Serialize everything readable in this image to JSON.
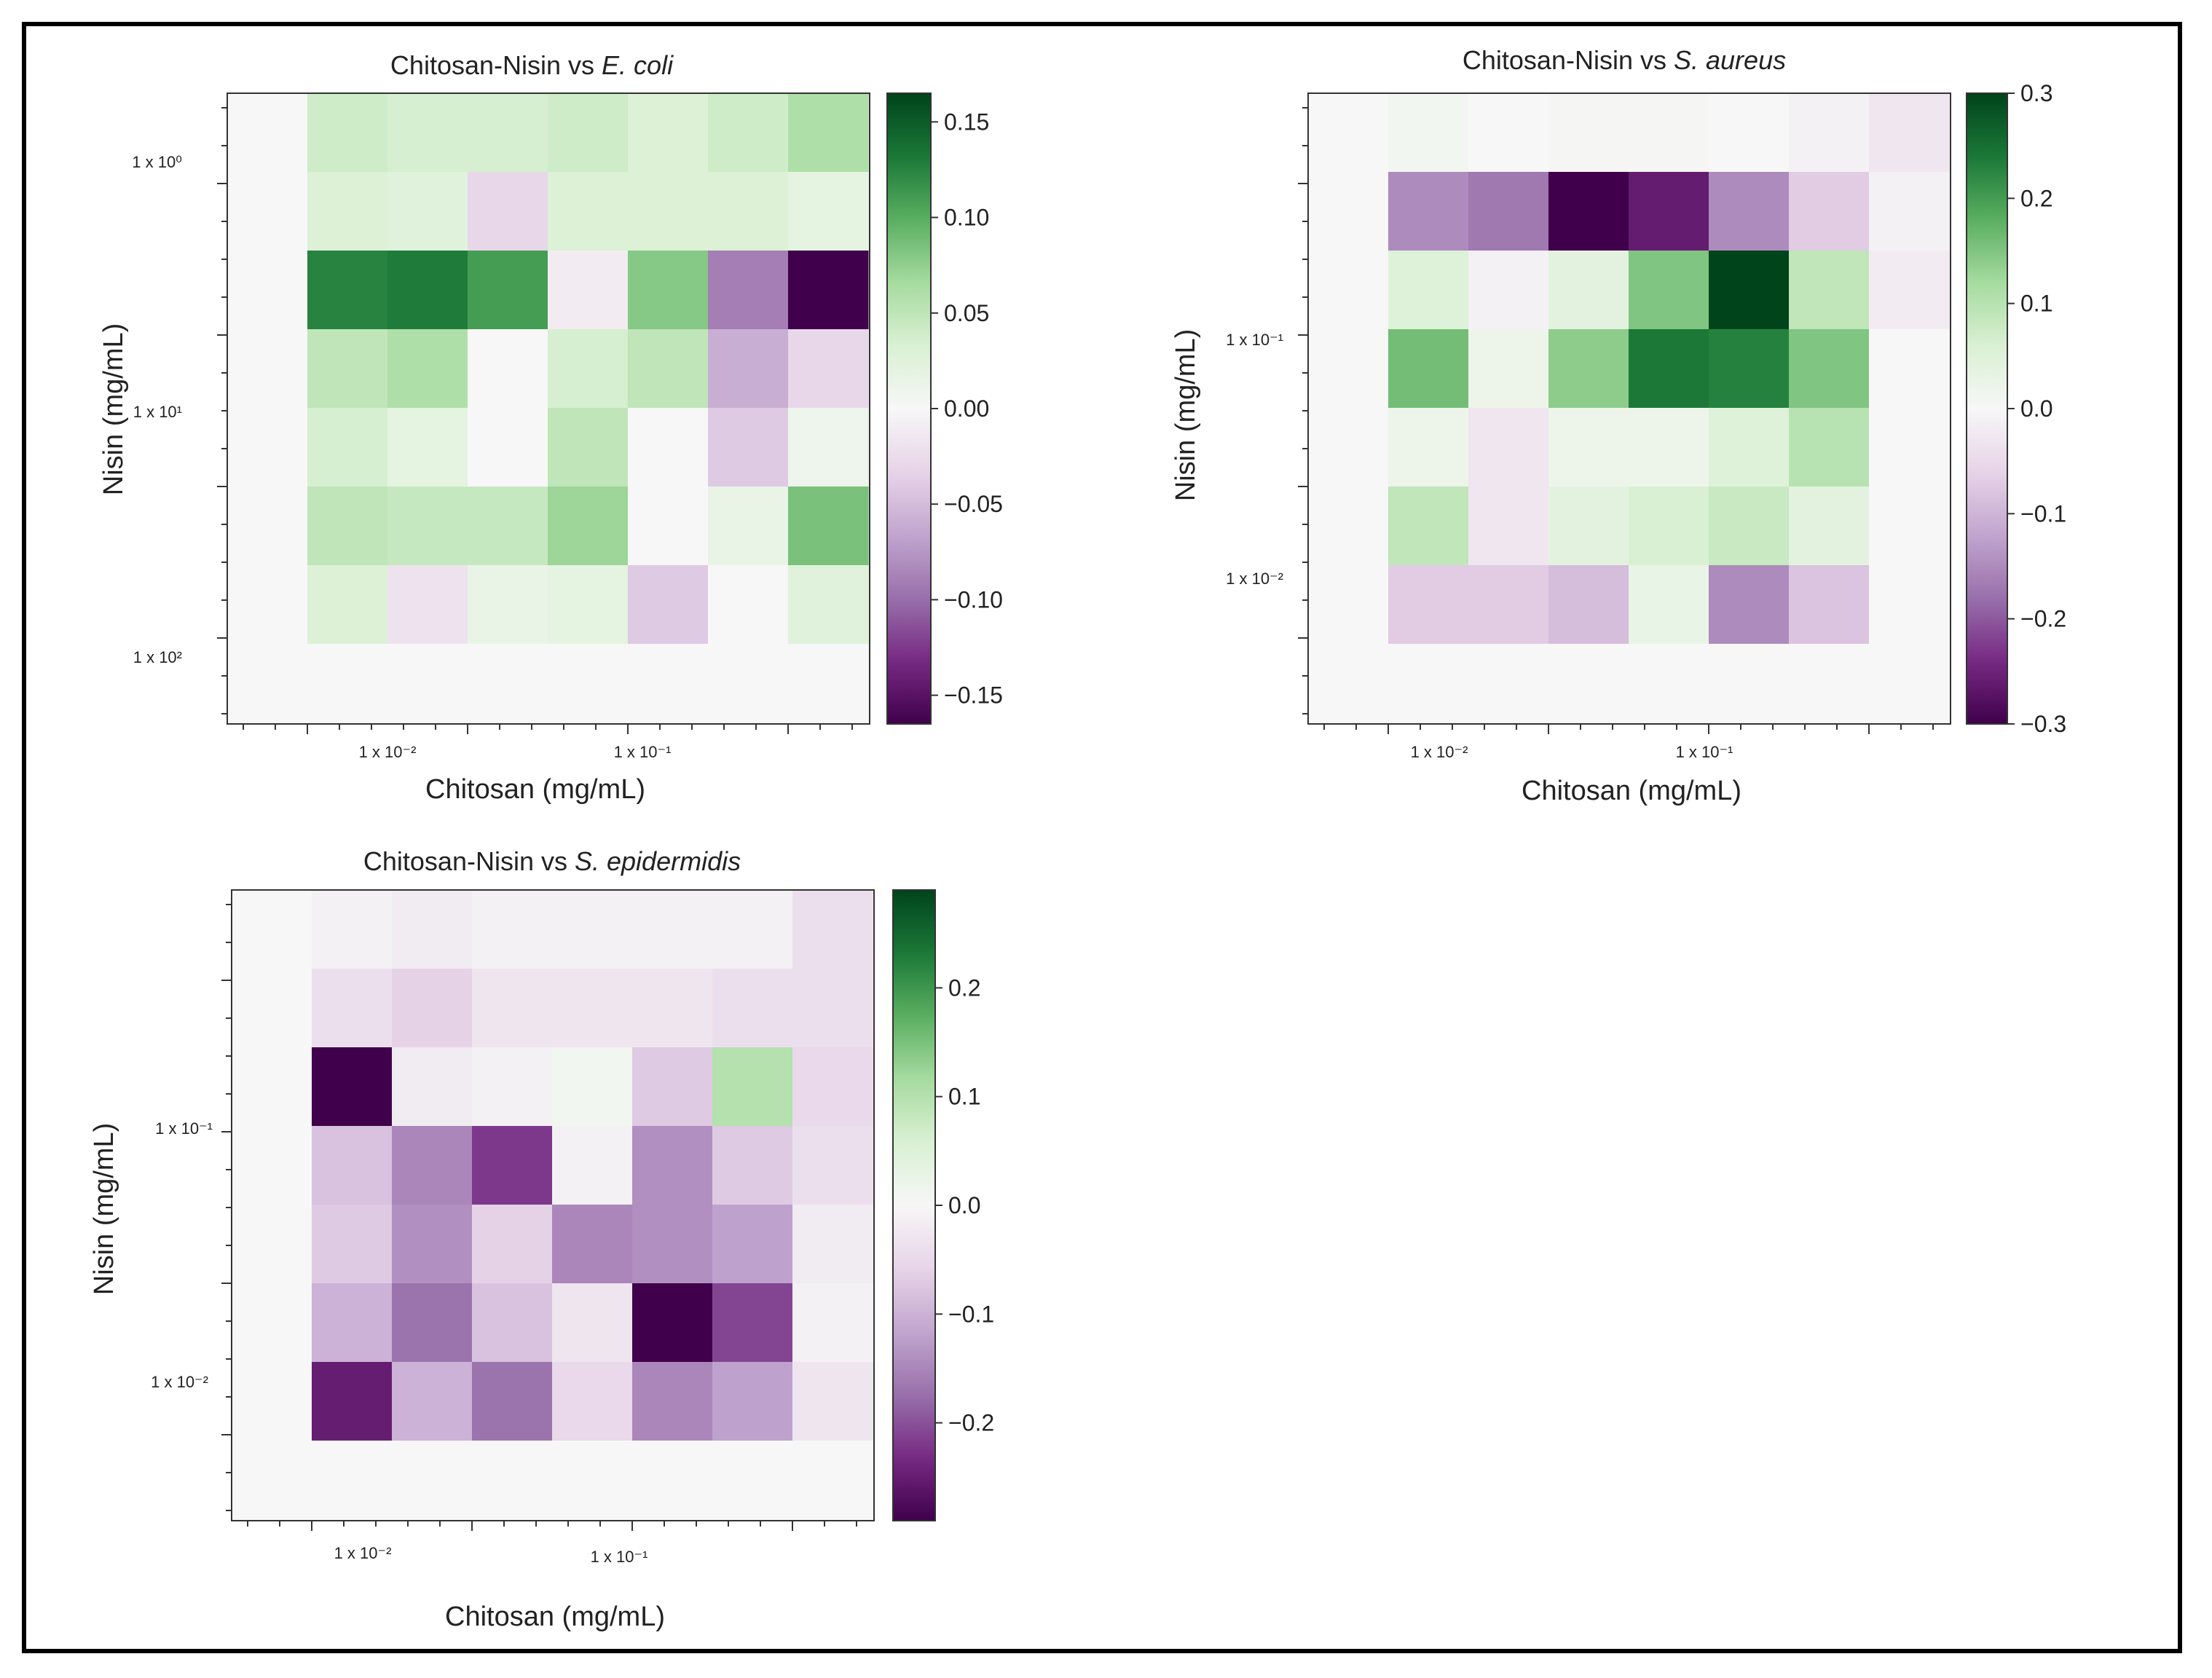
{
  "colormap": {
    "name": "PRGn",
    "stops": [
      "#40004b",
      "#762a83",
      "#9970ab",
      "#c2a5cf",
      "#e7d4e8",
      "#f7f7f7",
      "#d9f0d3",
      "#a6dba0",
      "#5aae61",
      "#1b7837",
      "#00441b"
    ]
  },
  "chart_data": [
    {
      "type": "heatmap",
      "title": "Chitosan-Nisin vs",
      "title_organism": "E. coli",
      "xlabel": "Chitosan (mg/mL)",
      "ylabel": "Nisin (mg/mL)",
      "x_ticks": [
        "1 x 10⁻²",
        "1 x 10⁻¹"
      ],
      "y_ticks": [
        "1 x 10⁰",
        "1 x 10¹",
        "1 x 10²"
      ],
      "vlim": [
        -0.165,
        0.165
      ],
      "colorbar_ticks": [
        0.15,
        0.1,
        0.05,
        0.0,
        -0.05,
        -0.1,
        -0.15
      ],
      "colorbar_labels": [
        "0.15",
        "0.10",
        "0.05",
        "0.00",
        "−0.05",
        "−0.10",
        "−0.15"
      ],
      "values": [
        [
          0,
          0.04,
          0.035,
          0.035,
          0.04,
          0.03,
          0.04,
          0.06
        ],
        [
          0,
          0.03,
          0.025,
          -0.03,
          0.03,
          0.03,
          0.03,
          0.02
        ],
        [
          0,
          0.125,
          0.13,
          0.11,
          -0.01,
          0.08,
          -0.09,
          -0.165
        ],
        [
          0,
          0.05,
          0.06,
          0.0,
          0.035,
          0.05,
          -0.06,
          -0.03
        ],
        [
          0,
          0.035,
          0.02,
          0.0,
          0.05,
          0.0,
          -0.04,
          0.01
        ],
        [
          0,
          0.05,
          0.045,
          0.045,
          0.07,
          0.0,
          0.015,
          0.085
        ],
        [
          0,
          0.03,
          -0.02,
          0.015,
          0.02,
          -0.04,
          0.0,
          0.025
        ],
        [
          0,
          0,
          0,
          0,
          0,
          0,
          0,
          0
        ]
      ]
    },
    {
      "type": "heatmap",
      "title": "Chitosan-Nisin vs",
      "title_organism": "S. aureus",
      "xlabel": "Chitosan (mg/mL)",
      "ylabel": "Nisin (mg/mL)",
      "x_ticks": [
        "1 x 10⁻²",
        "1 x 10⁻¹"
      ],
      "y_ticks": [
        "1 x 10⁻¹",
        "1 x 10⁻²"
      ],
      "vlim": [
        -0.3,
        0.3
      ],
      "colorbar_ticks": [
        0.3,
        0.2,
        0.1,
        0.0,
        -0.1,
        -0.2,
        -0.3
      ],
      "colorbar_labels": [
        "0.3",
        "0.2",
        "0.1",
        "0.0",
        "−0.1",
        "−0.2",
        "−0.3"
      ],
      "values": [
        [
          0,
          0.01,
          0.0,
          0.005,
          0.005,
          0.0,
          -0.01,
          -0.03
        ],
        [
          0,
          -0.15,
          -0.17,
          -0.3,
          -0.26,
          -0.15,
          -0.07,
          -0.01
        ],
        [
          0,
          0.05,
          -0.01,
          0.04,
          0.15,
          0.3,
          0.09,
          -0.02
        ],
        [
          0,
          0.16,
          0.02,
          0.14,
          0.24,
          0.23,
          0.15,
          0.0
        ],
        [
          0,
          0.02,
          -0.03,
          0.02,
          0.02,
          0.05,
          0.1,
          0.0
        ],
        [
          0,
          0.09,
          -0.03,
          0.04,
          0.06,
          0.08,
          0.04,
          0.0
        ],
        [
          0,
          -0.07,
          -0.07,
          -0.09,
          0.03,
          -0.15,
          -0.08,
          0.0
        ],
        [
          0,
          0,
          0,
          0,
          0,
          0,
          0,
          0
        ]
      ]
    },
    {
      "type": "heatmap",
      "title": "Chitosan-Nisin vs",
      "title_organism": "S. epidermidis",
      "xlabel": "Chitosan (mg/mL)",
      "ylabel": "Nisin (mg/mL)",
      "x_ticks": [
        "1 x 10⁻²",
        "1 x 10⁻¹"
      ],
      "y_ticks": [
        "1 x 10⁻¹",
        "1 x 10⁻²"
      ],
      "vlim": [
        -0.29,
        0.29
      ],
      "colorbar_ticks": [
        0.2,
        0.1,
        0.0,
        -0.1,
        -0.2
      ],
      "colorbar_labels": [
        "0.2",
        "0.1",
        "0.0",
        "−0.1",
        "−0.2"
      ],
      "values": [
        [
          0,
          -0.01,
          -0.02,
          -0.01,
          -0.01,
          -0.01,
          -0.01,
          -0.04
        ],
        [
          0,
          -0.04,
          -0.06,
          -0.03,
          -0.03,
          -0.03,
          -0.04,
          -0.04
        ],
        [
          0,
          -0.29,
          -0.02,
          -0.01,
          0.01,
          -0.07,
          0.1,
          -0.05
        ],
        [
          0,
          -0.08,
          -0.15,
          -0.22,
          -0.01,
          -0.14,
          -0.07,
          -0.04
        ],
        [
          0,
          -0.07,
          -0.14,
          -0.06,
          -0.15,
          -0.14,
          -0.12,
          -0.02
        ],
        [
          0,
          -0.1,
          -0.17,
          -0.08,
          -0.03,
          -0.29,
          -0.21,
          -0.01
        ],
        [
          0,
          -0.25,
          -0.1,
          -0.17,
          -0.05,
          -0.15,
          -0.12,
          -0.03
        ],
        [
          0,
          0,
          0,
          0,
          0,
          0,
          0,
          0
        ]
      ]
    }
  ]
}
